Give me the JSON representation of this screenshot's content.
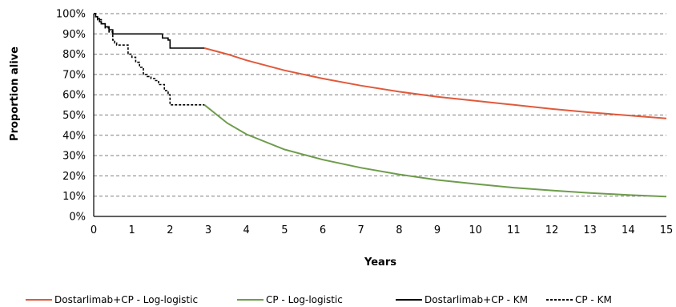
{
  "chart_data": {
    "type": "line",
    "title": "",
    "xlabel": "Years",
    "ylabel": "Proportion alive",
    "xlim": [
      0,
      15
    ],
    "ylim": [
      0,
      100
    ],
    "x_ticks": [
      "0",
      "1",
      "2",
      "3",
      "4",
      "5",
      "6",
      "7",
      "8",
      "9",
      "10",
      "11",
      "12",
      "13",
      "14",
      "15"
    ],
    "y_ticks": [
      "0%",
      "10%",
      "20%",
      "30%",
      "40%",
      "50%",
      "60%",
      "70%",
      "80%",
      "90%",
      "100%"
    ],
    "grid": "horizontal dashed",
    "legend_position": "bottom",
    "series": [
      {
        "name": "Dostarlimab+CP - Log-logistic",
        "color": "#e05a3c",
        "style": "solid",
        "x": [
          2.9,
          3.5,
          4,
          5,
          6,
          7,
          8,
          9,
          10,
          11,
          12,
          13,
          14,
          15
        ],
        "y": [
          83,
          80,
          77,
          72,
          68,
          64.5,
          61.5,
          59,
          57,
          55,
          53,
          51.3,
          49.8,
          48.3
        ]
      },
      {
        "name": "CP - Log-logistic",
        "color": "#6e9c4c",
        "style": "solid",
        "x": [
          2.9,
          3.5,
          4,
          5,
          6,
          7,
          8,
          9,
          10,
          11,
          12,
          13,
          14,
          15
        ],
        "y": [
          55,
          46,
          40.5,
          33,
          28,
          24,
          20.7,
          18,
          16,
          14.2,
          12.8,
          11.6,
          10.6,
          9.8
        ]
      },
      {
        "name": "Dostarlimab+CP - KM",
        "color": "#000000",
        "style": "step-solid",
        "x": [
          0,
          0.05,
          0.1,
          0.15,
          0.2,
          0.3,
          0.4,
          0.5,
          1.7,
          1.8,
          1.95,
          2.0,
          2.9
        ],
        "y": [
          100,
          98.5,
          97.5,
          96,
          95,
          93.5,
          92,
          90,
          90,
          88,
          87,
          83,
          83
        ]
      },
      {
        "name": "CP - KM",
        "color": "#000000",
        "style": "step-dashed",
        "x": [
          0,
          0.05,
          0.1,
          0.2,
          0.3,
          0.4,
          0.5,
          0.55,
          0.6,
          0.9,
          1.0,
          1.1,
          1.2,
          1.3,
          1.4,
          1.5,
          1.6,
          1.7,
          1.85,
          1.95,
          2.0,
          2.9
        ],
        "y": [
          100,
          98.5,
          97,
          95,
          93,
          91,
          87,
          85.5,
          84.5,
          80,
          78.5,
          76,
          73.5,
          70,
          69,
          68,
          67,
          65,
          62,
          60,
          55,
          55
        ]
      }
    ]
  }
}
